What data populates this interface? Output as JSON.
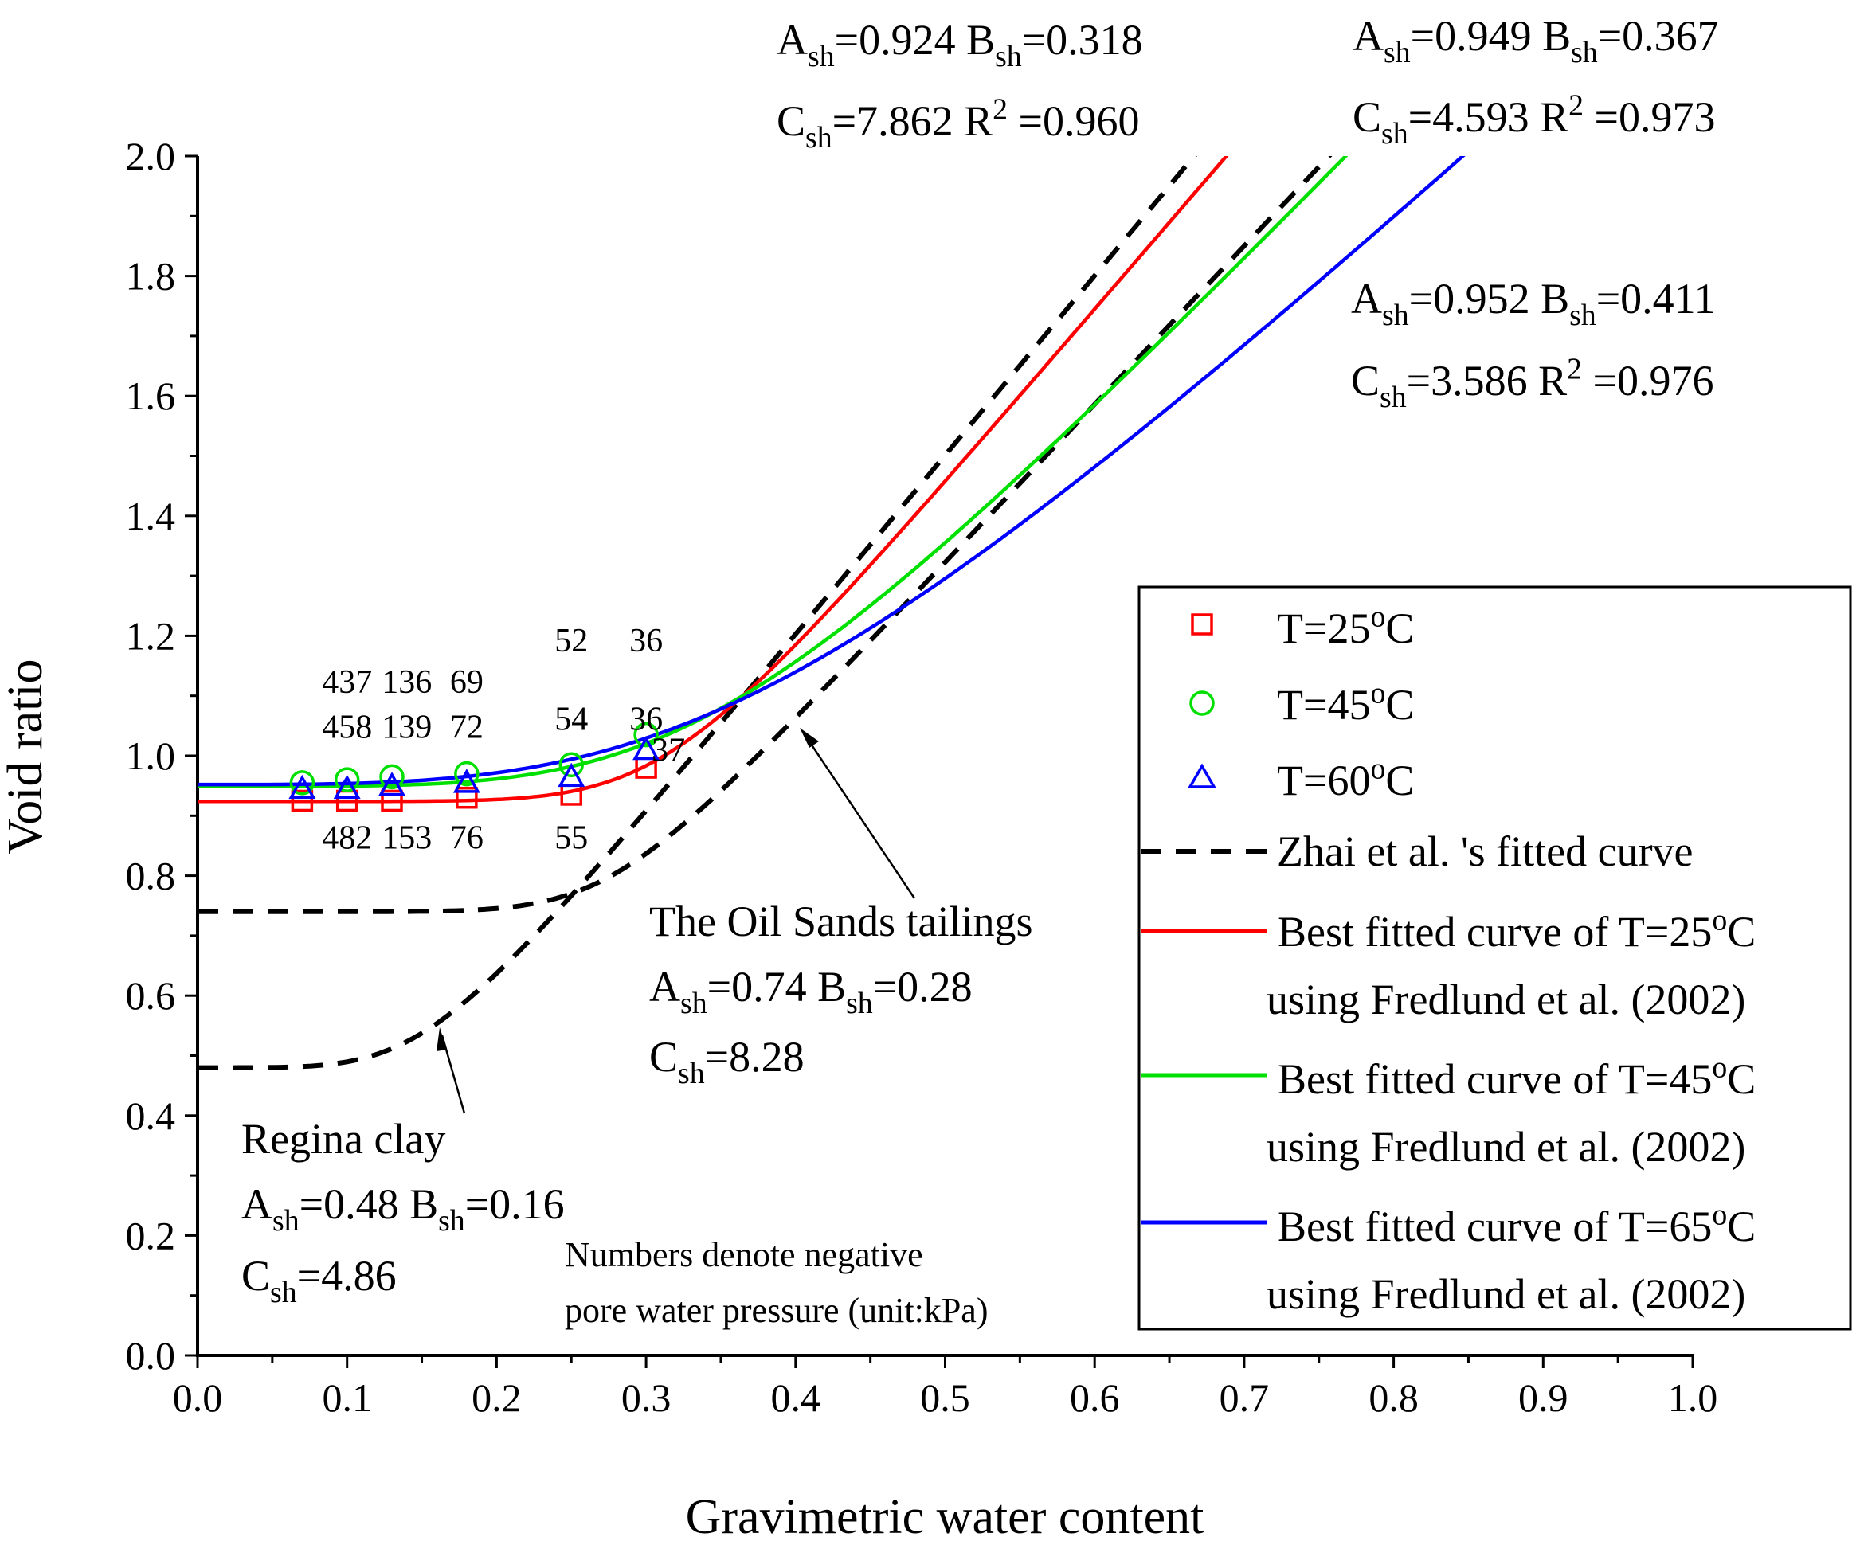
{
  "chart_data": {
    "type": "line",
    "xlabel": "Gravimetric water content",
    "ylabel": "Void ratio",
    "xlim": [
      0.0,
      1.0
    ],
    "ylim": [
      0.0,
      2.0
    ],
    "x_ticks": [
      "0.0",
      "0.1",
      "0.2",
      "0.3",
      "0.4",
      "0.5",
      "0.6",
      "0.7",
      "0.8",
      "0.9",
      "1.0"
    ],
    "y_ticks": [
      "0.0",
      "0.2",
      "0.4",
      "0.6",
      "0.8",
      "1.0",
      "1.2",
      "1.4",
      "1.6",
      "1.8",
      "2.0"
    ],
    "series_points": [
      {
        "name": "T=25°C",
        "marker": "square",
        "color": "#ff0000",
        "x": [
          0.07,
          0.1,
          0.13,
          0.18,
          0.25,
          0.3
        ],
        "y": [
          0.925,
          0.925,
          0.925,
          0.93,
          0.935,
          0.98
        ]
      },
      {
        "name": "T=45°C",
        "marker": "circle",
        "color": "#00e000",
        "x": [
          0.07,
          0.1,
          0.13,
          0.18,
          0.25,
          0.3
        ],
        "y": [
          0.955,
          0.96,
          0.965,
          0.97,
          0.985,
          1.035
        ]
      },
      {
        "name": "T=60°C",
        "marker": "triangle",
        "color": "#0000ff",
        "x": [
          0.07,
          0.1,
          0.13,
          0.18,
          0.25,
          0.3
        ],
        "y": [
          0.945,
          0.945,
          0.95,
          0.955,
          0.965,
          1.01
        ]
      }
    ],
    "fitted_curves": [
      {
        "name": "Best fitted curve of T=25°C using Fredlund et al. (2002)",
        "color": "#ff0000",
        "a": 0.924,
        "b": 0.318,
        "c": 7.862
      },
      {
        "name": "Best fitted curve of T=45°C using Fredlund et al. (2002)",
        "color": "#00e000",
        "a": 0.949,
        "b": 0.367,
        "c": 4.593
      },
      {
        "name": "Best fitted curve of T=65°C using Fredlund et al. (2002)",
        "color": "#0000ff",
        "a": 0.952,
        "b": 0.411,
        "c": 3.586
      }
    ],
    "reference_curves": [
      {
        "name": "Oil Sands tailings",
        "a": 0.74,
        "b": 0.28,
        "c": 8.28
      },
      {
        "name": "Regina clay",
        "a": 0.48,
        "b": 0.16,
        "c": 4.86
      }
    ],
    "pressure_labels": {
      "t45_row1": [
        "437",
        "136",
        "69",
        "52",
        "36"
      ],
      "t45_row2": [
        "458",
        "139",
        "72",
        "54",
        "36"
      ],
      "t25_row": [
        "482",
        "153",
        "76",
        "55",
        "37"
      ]
    },
    "annotations": {
      "fit25_line1": "A<sub>sh</sub>=0.924 B<sub>sh</sub>=0.318",
      "fit25_line2": "C<sub>sh</sub>=7.862 R<sup>2</sup> =0.960",
      "fit45_line1": "A<sub>sh</sub>=0.949 B<sub>sh</sub>=0.367",
      "fit45_line2": "C<sub>sh</sub>=4.593 R<sup>2</sup> =0.973",
      "fit65_line1": "A<sub>sh</sub>=0.952 B<sub>sh</sub>=0.411",
      "fit65_line2": "C<sub>sh</sub>=3.586 R<sup>2</sup> =0.976",
      "oil_title": "The Oil Sands tailings",
      "oil_line1": "A<sub>sh</sub>=0.74 B<sub>sh</sub>=0.28",
      "oil_line2": "C<sub>sh</sub>=8.28",
      "regina_title": "Regina clay",
      "regina_line1": "A<sub>sh</sub>=0.48 B<sub>sh</sub>=0.16",
      "regina_line2": "C<sub>sh</sub>=4.86",
      "note_line1": "Numbers denote negative",
      "note_line2": "pore water pressure (unit:kPa)"
    },
    "legend": {
      "position": "right",
      "t25": "T=25<sup>o</sup>C",
      "t45": "T=45<sup>o</sup>C",
      "t60": "T=60<sup>o</sup>C",
      "zhai": "Zhai et al. 's fitted curve",
      "red_line1": "Best fitted curve of T=25<sup>o</sup>C",
      "red_line2": "using Fredlund et al. (2002)",
      "green_line1": "Best fitted curve of T=45<sup>o</sup>C",
      "green_line2": "using Fredlund et al. (2002)",
      "blue_line1": "Best fitted curve of T=65<sup>o</sup>C",
      "blue_line2": "using Fredlund et al. (2002)"
    }
  }
}
